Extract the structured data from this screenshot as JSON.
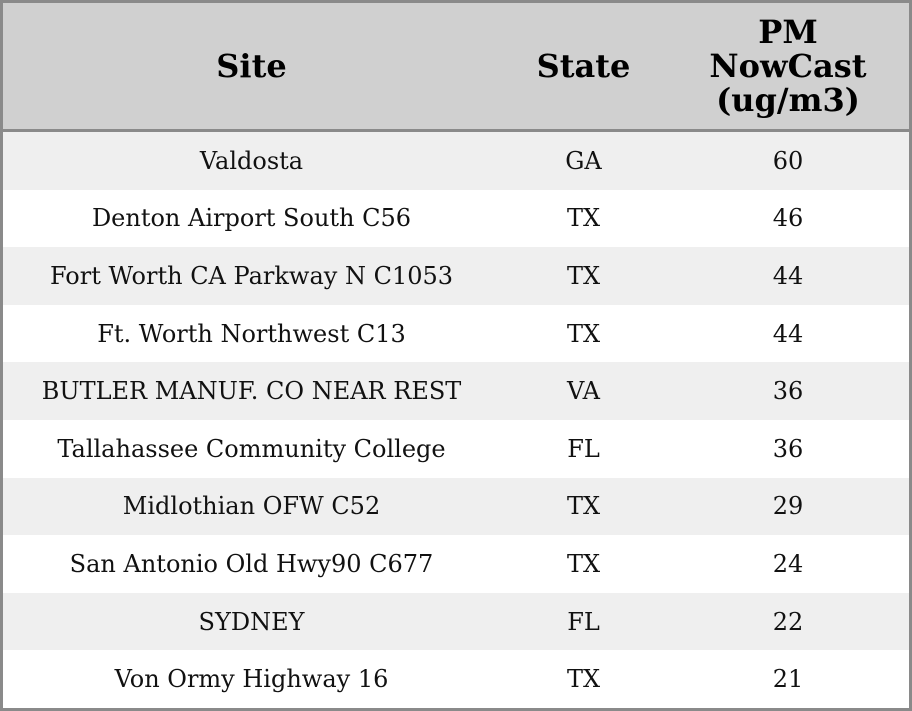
{
  "table": {
    "columns": [
      "Site",
      "State",
      "PM NowCast (ug/m3)"
    ],
    "rows": [
      [
        "Valdosta",
        "GA",
        60
      ],
      [
        "Denton Airport South C56",
        "TX",
        46
      ],
      [
        "Fort Worth CA Parkway N C1053",
        "TX",
        44
      ],
      [
        "Ft. Worth Northwest C13",
        "TX",
        44
      ],
      [
        "BUTLER MANUF. CO NEAR REST",
        "VA",
        36
      ],
      [
        "Tallahassee Community College",
        "FL",
        36
      ],
      [
        "Midlothian OFW C52",
        "TX",
        29
      ],
      [
        "San Antonio Old Hwy90 C677",
        "TX",
        24
      ],
      [
        "SYDNEY",
        "FL",
        22
      ],
      [
        "Von Ormy Highway 16",
        "TX",
        21
      ]
    ]
  }
}
